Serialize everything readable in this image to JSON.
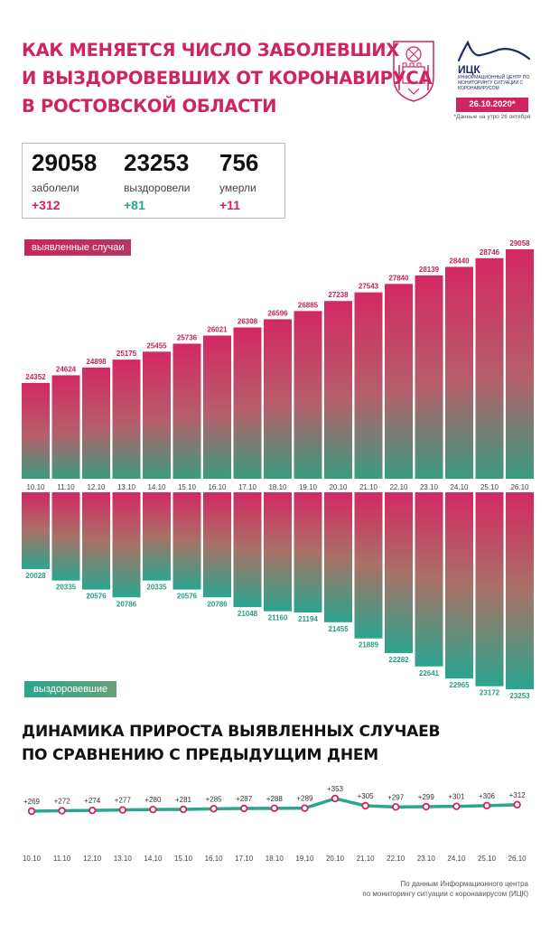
{
  "title_lines": [
    "КАК МЕНЯЕТСЯ ЧИСЛО ЗАБОЛЕВШИХ",
    "И ВЫЗДОРОВЕВШИХ ОТ КОРОНАВИРУСА",
    "В РОСТОВСКОЙ ОБЛАСТИ"
  ],
  "header": {
    "org_name": "ИЦК",
    "org_desc": "Информационный центр по мониторингу ситуации с коронавирусом",
    "date_badge": "26.10.2020*",
    "date_note": "*Данные на утро 26 октября"
  },
  "stats": [
    {
      "value": "29058",
      "label": "заболели",
      "delta": "+312"
    },
    {
      "value": "23253",
      "label": "выздоровели",
      "delta": "+81"
    },
    {
      "value": "756",
      "label": "умерли",
      "delta": "+11"
    }
  ],
  "labels": {
    "detected": "выявленные случаи",
    "recovered": "выздоровевшие"
  },
  "subtitle_lines": [
    "ДИНАМИКА ПРИРОСТА ВЫЯВЛЕННЫХ СЛУЧАЕВ",
    "ПО СРАВНЕНИЮ С ПРЕДЫДУЩИМ ДНЕМ"
  ],
  "source_lines": [
    "По данным Информационного центра",
    "по мониторингу ситуации с коронавирусом (ИЦК)"
  ],
  "colors": {
    "accent": "#d0245f",
    "green": "#2aa58e",
    "navy": "#1f2a6b"
  },
  "icons": {
    "coat_of_arms": "coat-of-arms-icon",
    "logo": "itsk-logo-icon"
  },
  "chart_data": [
    {
      "type": "bar",
      "categories": [
        "10.10",
        "11.10",
        "12.10",
        "13.10",
        "14.10",
        "15.10",
        "16.10",
        "17.10",
        "18.10",
        "19.10",
        "20.10",
        "21.10",
        "22.10",
        "23.10",
        "24.10",
        "25.10",
        "26.10"
      ],
      "series": [
        {
          "name": "выявленные случаи",
          "values": [
            24352,
            24624,
            24898,
            25175,
            25455,
            25736,
            26021,
            26308,
            26596,
            26885,
            27238,
            27543,
            27840,
            28139,
            28440,
            28746,
            29058
          ]
        },
        {
          "name": "выздоровевшие",
          "values": [
            20028,
            20335,
            20576,
            20786,
            20335,
            20576,
            20786,
            21048,
            21160,
            21194,
            21455,
            21889,
            22282,
            22641,
            22965,
            23172,
            23253
          ]
        }
      ]
    },
    {
      "type": "line",
      "categories": [
        "10.10",
        "11.10",
        "12.10",
        "13.10",
        "14.10",
        "15.10",
        "16.10",
        "17.10",
        "18.10",
        "19.10",
        "20.10",
        "21.10",
        "22.10",
        "23.10",
        "24.10",
        "25.10",
        "26.10"
      ],
      "values": [
        269,
        272,
        274,
        277,
        280,
        281,
        285,
        287,
        288,
        289,
        353,
        305,
        297,
        299,
        301,
        306,
        312
      ],
      "labels": [
        "+269",
        "+272",
        "+274",
        "+277",
        "+280",
        "+281",
        "+285",
        "+287",
        "+288",
        "+289",
        "+353",
        "+305",
        "+297",
        "+299",
        "+301",
        "+306",
        "+312"
      ]
    }
  ]
}
